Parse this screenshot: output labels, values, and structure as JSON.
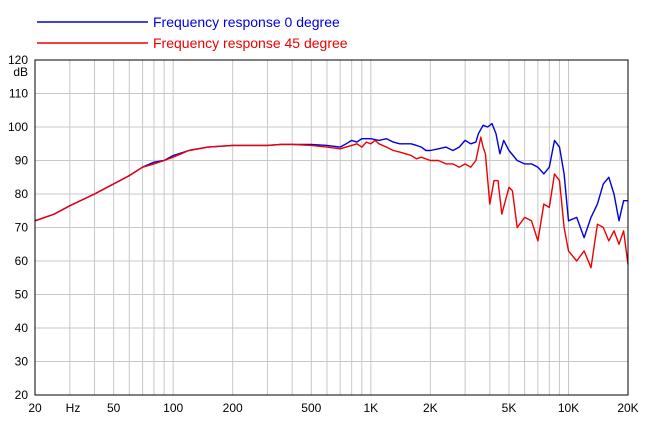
{
  "chart_data": {
    "type": "line",
    "title": "",
    "xlabel": "Hz",
    "ylabel": "dB",
    "xscale": "log",
    "xlim": [
      20,
      20000
    ],
    "ylim": [
      20,
      120
    ],
    "grid": true,
    "legend_position": "top-left",
    "x_ticks": [
      {
        "value": 20,
        "label": "20"
      },
      {
        "value": 50,
        "label": "50"
      },
      {
        "value": 100,
        "label": "100"
      },
      {
        "value": 200,
        "label": "200"
      },
      {
        "value": 500,
        "label": "500"
      },
      {
        "value": 1000,
        "label": "1K"
      },
      {
        "value": 2000,
        "label": "2K"
      },
      {
        "value": 5000,
        "label": "5K"
      },
      {
        "value": 10000,
        "label": "10K"
      },
      {
        "value": 20000,
        "label": "20K"
      }
    ],
    "y_ticks": [
      20,
      30,
      40,
      50,
      60,
      70,
      80,
      90,
      100,
      110,
      120
    ],
    "series": [
      {
        "name": "Frequency response 0 degree",
        "color": "#0000dd",
        "points": [
          [
            20,
            72
          ],
          [
            25,
            74
          ],
          [
            30,
            76.5
          ],
          [
            40,
            80
          ],
          [
            50,
            83
          ],
          [
            60,
            85.5
          ],
          [
            70,
            88
          ],
          [
            80,
            89.5
          ],
          [
            90,
            90
          ],
          [
            100,
            91.5
          ],
          [
            120,
            93
          ],
          [
            150,
            94
          ],
          [
            200,
            94.5
          ],
          [
            250,
            94.5
          ],
          [
            300,
            94.5
          ],
          [
            350,
            94.8
          ],
          [
            400,
            94.8
          ],
          [
            500,
            94.8
          ],
          [
            600,
            94.5
          ],
          [
            700,
            94
          ],
          [
            750,
            95
          ],
          [
            800,
            96
          ],
          [
            850,
            95.5
          ],
          [
            900,
            96.5
          ],
          [
            1000,
            96.5
          ],
          [
            1100,
            96
          ],
          [
            1200,
            96.5
          ],
          [
            1300,
            95.5
          ],
          [
            1400,
            95
          ],
          [
            1500,
            95
          ],
          [
            1600,
            95
          ],
          [
            1700,
            94.5
          ],
          [
            1800,
            94
          ],
          [
            1900,
            93
          ],
          [
            2000,
            93
          ],
          [
            2200,
            93.5
          ],
          [
            2400,
            94
          ],
          [
            2600,
            93
          ],
          [
            2800,
            94
          ],
          [
            3000,
            96
          ],
          [
            3200,
            95
          ],
          [
            3400,
            95.5
          ],
          [
            3500,
            98
          ],
          [
            3700,
            100.5
          ],
          [
            3900,
            100
          ],
          [
            4100,
            101
          ],
          [
            4300,
            98
          ],
          [
            4500,
            92
          ],
          [
            4700,
            96
          ],
          [
            5000,
            93
          ],
          [
            5500,
            90
          ],
          [
            6000,
            89
          ],
          [
            6500,
            89
          ],
          [
            7000,
            88
          ],
          [
            7500,
            86
          ],
          [
            8000,
            88
          ],
          [
            8500,
            96
          ],
          [
            9000,
            94
          ],
          [
            9500,
            86
          ],
          [
            10000,
            72
          ],
          [
            11000,
            73
          ],
          [
            12000,
            67
          ],
          [
            13000,
            73
          ],
          [
            14000,
            77
          ],
          [
            15000,
            83
          ],
          [
            16000,
            85
          ],
          [
            17000,
            80
          ],
          [
            18000,
            72
          ],
          [
            19000,
            78
          ],
          [
            20000,
            78
          ]
        ]
      },
      {
        "name": "Frequency response 45 degree",
        "color": "#ee0000",
        "points": [
          [
            20,
            72
          ],
          [
            25,
            74
          ],
          [
            30,
            76.5
          ],
          [
            40,
            80
          ],
          [
            50,
            83
          ],
          [
            60,
            85.5
          ],
          [
            70,
            88
          ],
          [
            80,
            89
          ],
          [
            90,
            90
          ],
          [
            100,
            91
          ],
          [
            120,
            93
          ],
          [
            150,
            94
          ],
          [
            200,
            94.5
          ],
          [
            250,
            94.5
          ],
          [
            300,
            94.5
          ],
          [
            350,
            94.8
          ],
          [
            400,
            94.8
          ],
          [
            500,
            94.5
          ],
          [
            600,
            94
          ],
          [
            700,
            93.5
          ],
          [
            750,
            94
          ],
          [
            800,
            94.5
          ],
          [
            850,
            95
          ],
          [
            900,
            94
          ],
          [
            950,
            95.5
          ],
          [
            1000,
            95
          ],
          [
            1050,
            96
          ],
          [
            1100,
            95
          ],
          [
            1200,
            94
          ],
          [
            1300,
            93
          ],
          [
            1400,
            92.5
          ],
          [
            1500,
            92
          ],
          [
            1600,
            91.5
          ],
          [
            1700,
            90.5
          ],
          [
            1800,
            91
          ],
          [
            2000,
            90
          ],
          [
            2200,
            90
          ],
          [
            2400,
            89
          ],
          [
            2600,
            89
          ],
          [
            2800,
            88
          ],
          [
            3000,
            89
          ],
          [
            3200,
            88
          ],
          [
            3400,
            90
          ],
          [
            3600,
            97
          ],
          [
            3700,
            94
          ],
          [
            3800,
            92
          ],
          [
            4000,
            77
          ],
          [
            4200,
            84
          ],
          [
            4400,
            84
          ],
          [
            4600,
            74
          ],
          [
            5000,
            82
          ],
          [
            5200,
            81
          ],
          [
            5500,
            70
          ],
          [
            6000,
            73
          ],
          [
            6500,
            72
          ],
          [
            7000,
            66
          ],
          [
            7500,
            77
          ],
          [
            8000,
            76
          ],
          [
            8500,
            86
          ],
          [
            9000,
            84
          ],
          [
            9500,
            70
          ],
          [
            10000,
            63
          ],
          [
            11000,
            60
          ],
          [
            12000,
            63
          ],
          [
            13000,
            58
          ],
          [
            14000,
            71
          ],
          [
            15000,
            70
          ],
          [
            16000,
            66
          ],
          [
            17000,
            69
          ],
          [
            18000,
            65
          ],
          [
            19000,
            69
          ],
          [
            20000,
            59
          ]
        ]
      }
    ]
  }
}
